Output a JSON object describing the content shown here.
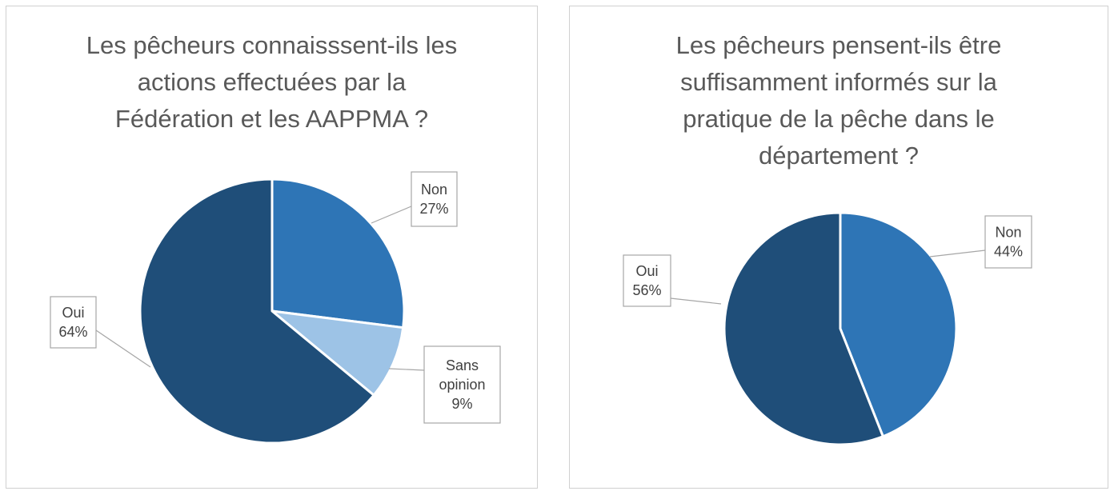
{
  "chart_data": [
    {
      "type": "pie",
      "title_lines": [
        "Les pêcheurs connaisssent-ils les",
        "actions effectuées par la",
        "Fédération et les AAPPMA ?"
      ],
      "slices": [
        {
          "category_lines": [
            "Non"
          ],
          "value": 27,
          "value_label": "27%",
          "color": "#2e75b6"
        },
        {
          "category_lines": [
            "Sans",
            "opinion"
          ],
          "value": 9,
          "value_label": "9%",
          "color": "#9dc3e6"
        },
        {
          "category_lines": [
            "Oui"
          ],
          "value": 64,
          "value_label": "64%",
          "color": "#1f4e79"
        }
      ]
    },
    {
      "type": "pie",
      "title_lines": [
        "Les pêcheurs pensent-ils être",
        "suffisamment informés sur la",
        "pratique de la pêche dans le",
        "département ?"
      ],
      "slices": [
        {
          "category_lines": [
            "Non"
          ],
          "value": 44,
          "value_label": "44%",
          "color": "#2e75b6"
        },
        {
          "category_lines": [
            "Oui"
          ],
          "value": 56,
          "value_label": "56%",
          "color": "#1f4e79"
        }
      ]
    }
  ]
}
